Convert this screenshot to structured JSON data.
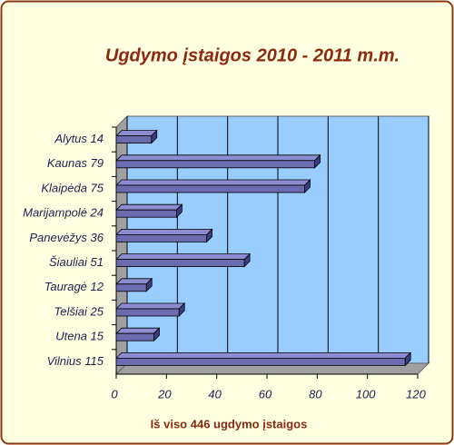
{
  "chart_data": {
    "type": "bar",
    "orientation": "horizontal",
    "title": "Ugdymo įstaigos 2010 - 2011 m.m.",
    "x_label": "Iš viso 446 ugdymo įstaigos",
    "categories": [
      "Alytus 14",
      "Kaunas 79",
      "Klaipėda 75",
      "Marijampolė 24",
      "Panevėžys 36",
      "Šiauliai 51",
      "Tauragė 12",
      "Telšiai 25",
      "Utena 15",
      "Vilnius 115"
    ],
    "values": [
      14,
      79,
      75,
      24,
      36,
      51,
      12,
      25,
      15,
      115
    ],
    "color": "#6b6bb0",
    "xlim": [
      0,
      120
    ],
    "xticks": [
      0,
      20,
      40,
      60,
      80,
      100,
      120
    ],
    "grid": true
  }
}
